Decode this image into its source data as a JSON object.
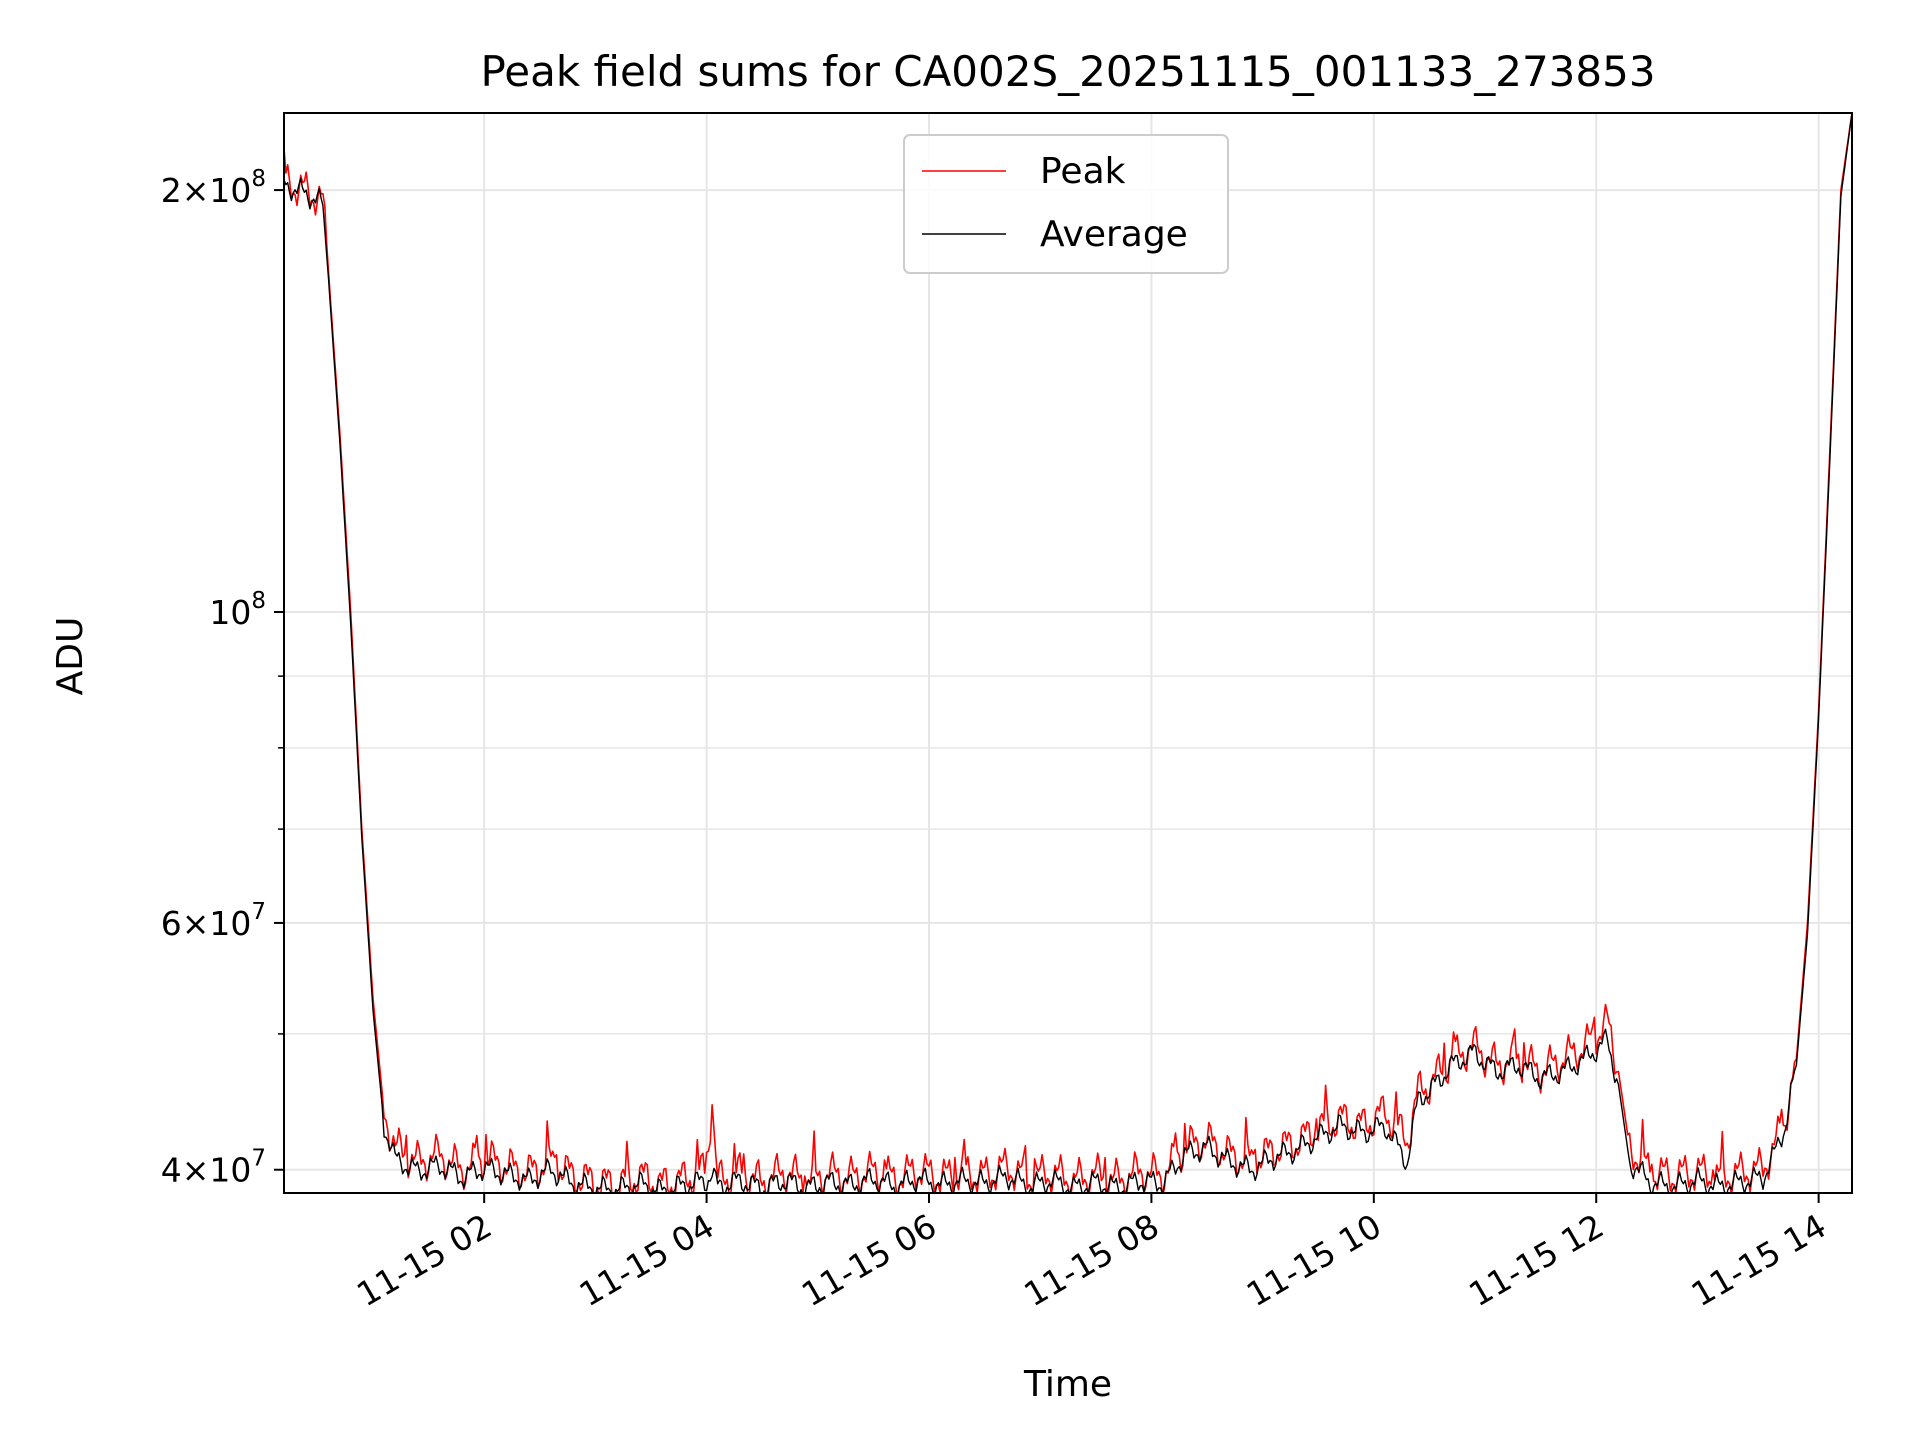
{
  "chart_data": {
    "type": "line",
    "title": "Peak field sums for CA002S_20251115_001133_273853",
    "xlabel": "Time",
    "ylabel": "ADU",
    "yscale": "log",
    "xlim": [
      0.2,
      14.3
    ],
    "ylim": [
      38500000,
      227000000
    ],
    "grid": true,
    "legend_position": "upper-center",
    "x_ticks": [
      {
        "value": 2,
        "label": "11-15 02"
      },
      {
        "value": 4,
        "label": "11-15 04"
      },
      {
        "value": 6,
        "label": "11-15 06"
      },
      {
        "value": 8,
        "label": "11-15 08"
      },
      {
        "value": 10,
        "label": "11-15 10"
      },
      {
        "value": 12,
        "label": "11-15 12"
      },
      {
        "value": 14,
        "label": "11-15 14"
      }
    ],
    "y_major_ticks": [
      {
        "value": 40000000,
        "mantissa": "4",
        "exponent": "7"
      },
      {
        "value": 60000000,
        "mantissa": "6",
        "exponent": "7"
      },
      {
        "value": 100000000,
        "mantissa": "",
        "exponent": "8"
      },
      {
        "value": 200000000,
        "mantissa": "2",
        "exponent": "8"
      }
    ],
    "y_minor_ticks": [
      50000000,
      70000000,
      80000000,
      90000000
    ],
    "series": [
      {
        "name": "Peak",
        "color": "#ff0000",
        "x": [
          0.2,
          0.5,
          0.55,
          0.6,
          0.7,
          0.8,
          0.9,
          1.0,
          1.1,
          1.2,
          1.4,
          1.6,
          1.8,
          2.0,
          2.2,
          2.4,
          2.6,
          2.8,
          3.0,
          3.2,
          3.4,
          3.6,
          3.8,
          4.0,
          4.05,
          4.1,
          4.3,
          4.5,
          4.7,
          4.9,
          5.1,
          5.3,
          5.5,
          5.7,
          5.9,
          6.1,
          6.3,
          6.5,
          6.7,
          6.9,
          7.1,
          7.3,
          7.5,
          7.7,
          7.9,
          8.1,
          8.3,
          8.5,
          8.7,
          8.9,
          9.1,
          9.3,
          9.5,
          9.7,
          9.9,
          10.1,
          10.3,
          10.4,
          10.5,
          10.7,
          10.9,
          11.1,
          11.3,
          11.5,
          11.7,
          11.9,
          12.1,
          12.2,
          12.3,
          12.5,
          12.7,
          12.9,
          13.1,
          13.3,
          13.5,
          13.6,
          13.7,
          13.8,
          13.9,
          14.0,
          14.1,
          14.2,
          14.3
        ],
        "y": [
          203000000,
          198000000,
          196000000,
          175000000,
          135000000,
          100000000,
          70000000,
          53000000,
          44000000,
          41500000,
          40500000,
          41000000,
          40000000,
          40800000,
          40200000,
          39800000,
          40600000,
          39600000,
          39200000,
          39000000,
          39600000,
          39000000,
          39400000,
          40000000,
          44500000,
          39300000,
          39800000,
          39200000,
          39900000,
          39300000,
          39800000,
          39500000,
          39900000,
          39400000,
          40000000,
          39500000,
          39800000,
          39600000,
          40200000,
          39400000,
          39800000,
          39300000,
          39700000,
          39300000,
          39900000,
          39600000,
          41500000,
          42000000,
          41000000,
          40600000,
          41300000,
          41800000,
          42800000,
          43500000,
          43000000,
          44000000,
          42000000,
          45500000,
          46000000,
          48000000,
          49000000,
          47500000,
          48000000,
          47000000,
          48000000,
          49000000,
          51000000,
          47000000,
          41500000,
          39800000,
          39600000,
          39900000,
          39500000,
          39800000,
          40100000,
          41500000,
          43500000,
          48000000,
          60000000,
          85000000,
          130000000,
          200000000,
          227000000
        ]
      },
      {
        "name": "Average",
        "color": "#000000",
        "x": [
          0.2,
          0.5,
          0.55,
          0.6,
          0.7,
          0.8,
          0.9,
          1.0,
          1.1,
          1.2,
          1.4,
          1.6,
          1.8,
          2.0,
          2.2,
          2.4,
          2.6,
          2.8,
          3.0,
          3.2,
          3.4,
          3.6,
          3.8,
          4.0,
          4.05,
          4.1,
          4.3,
          4.5,
          4.7,
          4.9,
          5.1,
          5.3,
          5.5,
          5.7,
          5.9,
          6.1,
          6.3,
          6.5,
          6.7,
          6.9,
          7.1,
          7.3,
          7.5,
          7.7,
          7.9,
          8.1,
          8.3,
          8.5,
          8.7,
          8.9,
          9.1,
          9.3,
          9.5,
          9.7,
          9.9,
          10.1,
          10.3,
          10.4,
          10.5,
          10.7,
          10.9,
          11.1,
          11.3,
          11.5,
          11.7,
          11.9,
          12.1,
          12.2,
          12.3,
          12.5,
          12.7,
          12.9,
          13.1,
          13.3,
          13.5,
          13.6,
          13.7,
          13.8,
          13.9,
          14.0,
          14.1,
          14.2,
          14.3
        ],
        "y": [
          202000000,
          197000000,
          195000000,
          173000000,
          133000000,
          98000000,
          69000000,
          52000000,
          43000000,
          40700000,
          39900000,
          40300000,
          39500000,
          40100000,
          39700000,
          39300000,
          40000000,
          39100000,
          38800000,
          38700000,
          39100000,
          38600000,
          39000000,
          39300000,
          39800000,
          38900000,
          39300000,
          38800000,
          39300000,
          38800000,
          39200000,
          39000000,
          39400000,
          38900000,
          39400000,
          39000000,
          39300000,
          39100000,
          39600000,
          38900000,
          39300000,
          38800000,
          39200000,
          38800000,
          39300000,
          39100000,
          41000000,
          41500000,
          40500000,
          40000000,
          40800000,
          41300000,
          42200000,
          43000000,
          42500000,
          43000000,
          40500000,
          45000000,
          45500000,
          47500000,
          48500000,
          47000000,
          47500000,
          46500000,
          47000000,
          48000000,
          49500000,
          46000000,
          40500000,
          39100000,
          38900000,
          39300000,
          38900000,
          39200000,
          39500000,
          41000000,
          43000000,
          47500000,
          59000000,
          84000000,
          128000000,
          198000000,
          227000000
        ]
      }
    ]
  }
}
